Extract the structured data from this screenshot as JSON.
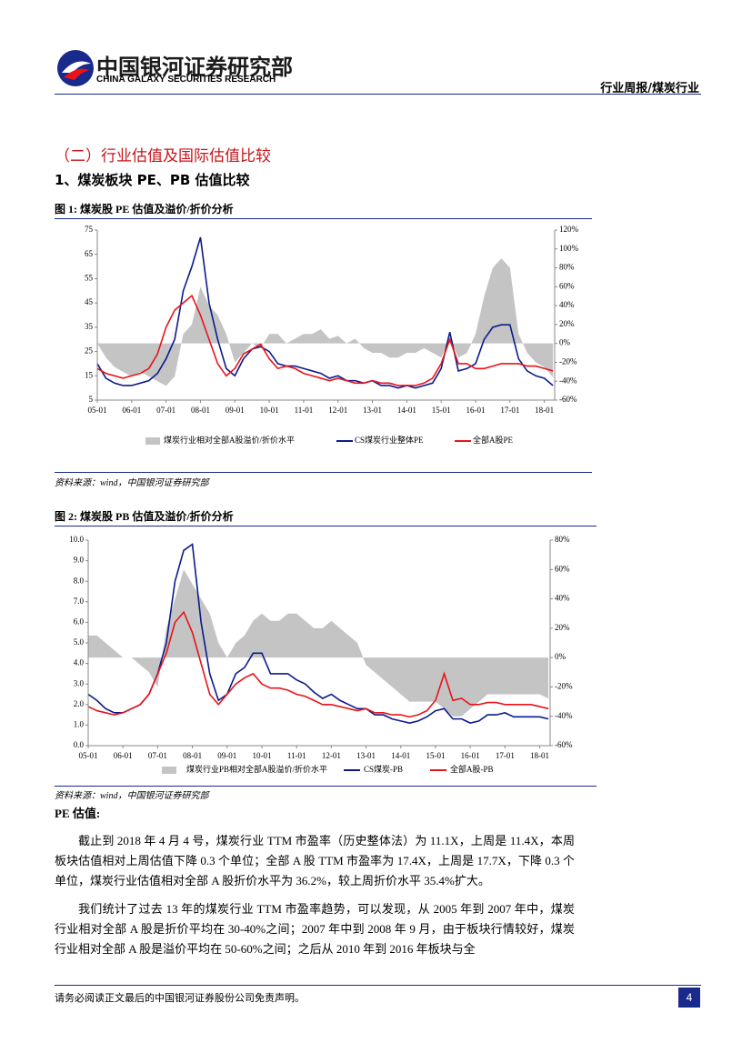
{
  "header": {
    "logo_cn": "中国银河证券研究部",
    "logo_en": "CHINA GALAXY SECURITIES RESEARCH",
    "report": "行业周报/煤炭行业"
  },
  "section": "（二）行业估值及国际估值比较",
  "subsection": "1、煤炭板块 PE、PB 估值比较",
  "chart_data": [
    {
      "type": "line",
      "title": "图 1:  煤炭股 PE 估值及溢价/折价分析",
      "source": "资料来源：wind，中国银河证券研究部",
      "x": [
        2005,
        2005.25,
        2005.5,
        2005.75,
        2006,
        2006.25,
        2006.5,
        2006.75,
        2007,
        2007.25,
        2007.5,
        2007.75,
        2008,
        2008.25,
        2008.5,
        2008.75,
        2009,
        2009.25,
        2009.5,
        2009.75,
        2010,
        2010.25,
        2010.5,
        2010.75,
        2011,
        2011.25,
        2011.5,
        2011.75,
        2012,
        2012.25,
        2012.5,
        2012.75,
        2013,
        2013.25,
        2013.5,
        2013.75,
        2014,
        2014.25,
        2014.5,
        2014.75,
        2015,
        2015.25,
        2015.5,
        2015.75,
        2016,
        2016.25,
        2016.5,
        2016.75,
        2017,
        2017.25,
        2017.5,
        2017.75,
        2018,
        2018.25
      ],
      "xlim": [
        2005,
        2018.3
      ],
      "xticks": [
        {
          "value": 2005,
          "label": "05-01"
        },
        {
          "value": 2006,
          "label": "06-01"
        },
        {
          "value": 2007,
          "label": "07-01"
        },
        {
          "value": 2008,
          "label": "08-01"
        },
        {
          "value": 2009,
          "label": "09-01"
        },
        {
          "value": 2010,
          "label": "10-01"
        },
        {
          "value": 2011,
          "label": "11-01"
        },
        {
          "value": 2012,
          "label": "12-01"
        },
        {
          "value": 2013,
          "label": "13-01"
        },
        {
          "value": 2014,
          "label": "14-01"
        },
        {
          "value": 2015,
          "label": "15-01"
        },
        {
          "value": 2016,
          "label": "16-01"
        },
        {
          "value": 2017,
          "label": "17-01"
        },
        {
          "value": 2018,
          "label": "18-01"
        }
      ],
      "ylim": [
        5,
        75
      ],
      "yticks": [
        5,
        15,
        25,
        35,
        45,
        55,
        65,
        75
      ],
      "y2lim": [
        -60,
        120
      ],
      "y2ticks": [
        {
          "value": -60,
          "label": "-60%"
        },
        {
          "value": -40,
          "label": "-40%"
        },
        {
          "value": -20,
          "label": "-20%"
        },
        {
          "value": 0,
          "label": "0%"
        },
        {
          "value": 20,
          "label": "20%"
        },
        {
          "value": 40,
          "label": "40%"
        },
        {
          "value": 60,
          "label": "60%"
        },
        {
          "value": 80,
          "label": "80%"
        },
        {
          "value": 100,
          "label": "100%"
        },
        {
          "value": 120,
          "label": "120%"
        }
      ],
      "series": [
        {
          "name": "煤炭行业相对全部A股溢价/折价水平",
          "type": "area",
          "axis": "y2",
          "color": "#c4c4c4",
          "values": [
            0,
            -15,
            -25,
            -30,
            -35,
            -30,
            -35,
            -40,
            -45,
            -35,
            10,
            20,
            60,
            40,
            30,
            10,
            -20,
            -10,
            0,
            -5,
            10,
            10,
            0,
            5,
            10,
            10,
            15,
            5,
            8,
            0,
            5,
            -5,
            -10,
            -10,
            -15,
            -15,
            -10,
            -10,
            -5,
            -10,
            -15,
            5,
            -15,
            -10,
            10,
            50,
            80,
            90,
            80,
            10,
            -10,
            -20,
            -25,
            -36
          ]
        },
        {
          "name": "CS煤炭行业整体PE",
          "type": "line",
          "color": "#0c1a8a",
          "values": [
            20,
            14,
            12,
            11,
            11,
            12,
            13,
            16,
            22,
            30,
            50,
            60,
            72,
            45,
            30,
            18,
            15,
            22,
            26,
            27,
            25,
            20,
            19,
            19,
            18,
            17,
            16,
            14,
            15,
            13,
            13,
            12,
            13,
            11,
            11,
            10,
            11,
            10,
            11,
            12,
            18,
            33,
            17,
            18,
            20,
            30,
            35,
            36,
            36,
            22,
            17,
            15,
            14,
            11
          ]
        },
        {
          "name": "全部A股PE",
          "type": "line",
          "color": "#e8141a",
          "values": [
            18,
            16,
            15,
            14,
            15,
            16,
            18,
            24,
            35,
            42,
            45,
            48,
            40,
            30,
            20,
            15,
            18,
            24,
            26,
            28,
            22,
            18,
            19,
            18,
            16,
            15,
            14,
            13,
            14,
            13,
            12,
            12,
            13,
            12,
            12,
            11,
            11,
            11,
            12,
            14,
            20,
            30,
            20,
            20,
            18,
            18,
            19,
            20,
            20,
            20,
            19,
            19,
            18,
            17
          ]
        }
      ]
    },
    {
      "type": "line",
      "title": "图 2:  煤炭股 PB 估值及溢价/折价分析",
      "source": "资料来源：wind，中国银河证券研究部",
      "x": [
        2005,
        2005.25,
        2005.5,
        2005.75,
        2006,
        2006.25,
        2006.5,
        2006.75,
        2007,
        2007.25,
        2007.5,
        2007.75,
        2008,
        2008.25,
        2008.5,
        2008.75,
        2009,
        2009.25,
        2009.5,
        2009.75,
        2010,
        2010.25,
        2010.5,
        2010.75,
        2011,
        2011.25,
        2011.5,
        2011.75,
        2012,
        2012.25,
        2012.5,
        2012.75,
        2013,
        2013.25,
        2013.5,
        2013.75,
        2014,
        2014.25,
        2014.5,
        2014.75,
        2015,
        2015.25,
        2015.5,
        2015.75,
        2016,
        2016.25,
        2016.5,
        2016.75,
        2017,
        2017.25,
        2017.5,
        2017.75,
        2018,
        2018.25
      ],
      "xlim": [
        2005,
        2018.3
      ],
      "xticks": [
        {
          "value": 2005,
          "label": "05-01"
        },
        {
          "value": 2006,
          "label": "06-01"
        },
        {
          "value": 2007,
          "label": "07-01"
        },
        {
          "value": 2008,
          "label": "08-01"
        },
        {
          "value": 2009,
          "label": "09-01"
        },
        {
          "value": 2010,
          "label": "10-01"
        },
        {
          "value": 2011,
          "label": "11-01"
        },
        {
          "value": 2012,
          "label": "12-01"
        },
        {
          "value": 2013,
          "label": "13-01"
        },
        {
          "value": 2014,
          "label": "14-01"
        },
        {
          "value": 2015,
          "label": "15-01"
        },
        {
          "value": 2016,
          "label": "16-01"
        },
        {
          "value": 2017,
          "label": "17-01"
        },
        {
          "value": 2018,
          "label": "18-01"
        }
      ],
      "ylim": [
        0,
        10
      ],
      "yticks": [
        {
          "value": 0,
          "label": "0.0"
        },
        {
          "value": 1,
          "label": "1.0"
        },
        {
          "value": 2,
          "label": "2.0"
        },
        {
          "value": 3,
          "label": "3.0"
        },
        {
          "value": 4,
          "label": "4.0"
        },
        {
          "value": 5,
          "label": "5.0"
        },
        {
          "value": 6,
          "label": "6.0"
        },
        {
          "value": 7,
          "label": "7.0"
        },
        {
          "value": 8,
          "label": "8.0"
        },
        {
          "value": 9,
          "label": "9.0"
        },
        {
          "value": 10,
          "label": "10.0"
        }
      ],
      "y2lim": [
        -60,
        80
      ],
      "y2ticks": [
        {
          "value": -60,
          "label": "-60%"
        },
        {
          "value": -40,
          "label": "-40%"
        },
        {
          "value": -20,
          "label": "-20%"
        },
        {
          "value": 0,
          "label": "0%"
        },
        {
          "value": 20,
          "label": "20%"
        },
        {
          "value": 40,
          "label": "40%"
        },
        {
          "value": 60,
          "label": "60%"
        },
        {
          "value": 80,
          "label": "80%"
        }
      ],
      "series": [
        {
          "name": "煤炭行业PB相对全部A股溢价/折价水平",
          "type": "area",
          "axis": "y2",
          "color": "#c4c4c4",
          "values": [
            15,
            15,
            10,
            5,
            0,
            0,
            -5,
            -10,
            -20,
            20,
            40,
            60,
            50,
            40,
            30,
            10,
            0,
            10,
            15,
            25,
            30,
            25,
            25,
            30,
            30,
            25,
            20,
            20,
            25,
            20,
            15,
            10,
            -5,
            -10,
            -15,
            -20,
            -25,
            -30,
            -30,
            -30,
            -30,
            -35,
            -40,
            -40,
            -35,
            -30,
            -25,
            -25,
            -25,
            -25,
            -25,
            -25,
            -25,
            -28
          ]
        },
        {
          "name": "CS煤炭-PB",
          "type": "line",
          "color": "#0c1a8a",
          "values": [
            2.5,
            2.2,
            1.8,
            1.6,
            1.6,
            1.8,
            2.0,
            2.5,
            3.5,
            5,
            8,
            9.5,
            9.8,
            6,
            3.5,
            2.2,
            2.5,
            3.5,
            3.8,
            4.5,
            4.5,
            3.5,
            3.5,
            3.5,
            3.2,
            3.0,
            2.6,
            2.3,
            2.5,
            2.2,
            2.0,
            1.8,
            1.8,
            1.5,
            1.5,
            1.3,
            1.2,
            1.1,
            1.2,
            1.4,
            1.7,
            1.8,
            1.3,
            1.3,
            1.1,
            1.2,
            1.5,
            1.5,
            1.6,
            1.4,
            1.4,
            1.4,
            1.4,
            1.3
          ]
        },
        {
          "name": "全部A股-PB",
          "type": "line",
          "color": "#e8141a",
          "values": [
            1.9,
            1.7,
            1.6,
            1.5,
            1.6,
            1.8,
            2.0,
            2.5,
            3.5,
            4.5,
            6,
            6.5,
            5.5,
            4,
            2.5,
            2.0,
            2.5,
            3.0,
            3.3,
            3.5,
            3.0,
            2.8,
            2.8,
            2.7,
            2.5,
            2.4,
            2.2,
            2.0,
            2.0,
            1.9,
            1.8,
            1.7,
            1.8,
            1.6,
            1.6,
            1.5,
            1.5,
            1.4,
            1.5,
            1.7,
            2.2,
            3.5,
            2.2,
            2.3,
            2.0,
            2.0,
            2.1,
            2.1,
            2.0,
            2.0,
            2.0,
            2.0,
            1.9,
            1.8
          ]
        }
      ]
    }
  ],
  "pe_heading": "PE 估值:",
  "paragraphs": [
    "截止到 2018 年 4 月 4 号，煤炭行业 TTM 市盈率（历史整体法）为 11.1X，上周是 11.4X，本周板块估值相对上周估值下降 0.3 个单位；全部 A 股 TTM 市盈率为 17.4X，上周是 17.7X，下降 0.3 个单位，煤炭行业估值相对全部 A 股折价水平为 36.2%，较上周折价水平 35.4%扩大。",
    "我们统计了过去 13 年的煤炭行业 TTM 市盈率趋势，可以发现，从 2005 年到 2007 年中，煤炭行业相对全部 A 股是折价平均在 30-40%之间；2007 年中到 2008 年 9 月，由于板块行情较好，煤炭行业相对全部 A 股是溢价平均在 50-60%之间；之后从 2010 年到 2016 年板块与全"
  ],
  "footer": {
    "disclaimer": "请务必阅读正文最后的中国银河证券股份公司免责声明。",
    "page": "4"
  }
}
